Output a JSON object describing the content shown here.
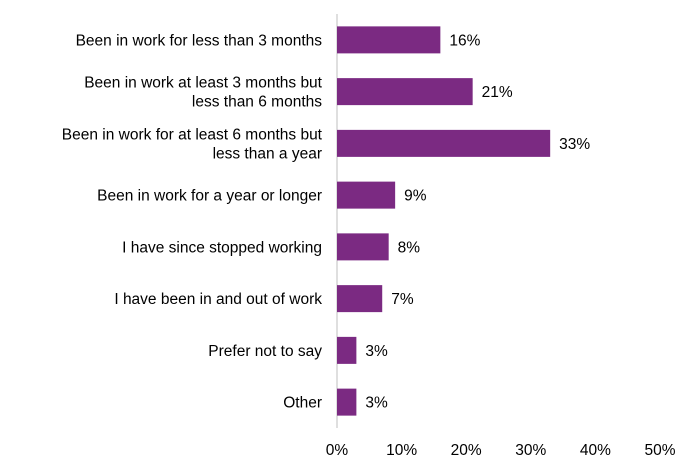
{
  "chart_data": {
    "type": "bar",
    "orientation": "horizontal",
    "categories": [
      [
        "Been in work for less than 3 months"
      ],
      [
        "Been in work at least 3 months but",
        "less than 6 months"
      ],
      [
        "Been in work for at least 6 months but",
        "less than a year"
      ],
      [
        "Been in work for a year or longer"
      ],
      [
        "I have since stopped working"
      ],
      [
        "I have been in and out of work"
      ],
      [
        "Prefer not to say"
      ],
      [
        "Other"
      ]
    ],
    "values": [
      16,
      21,
      33,
      9,
      8,
      7,
      3,
      3
    ],
    "value_labels": [
      "16%",
      "21%",
      "33%",
      "9%",
      "8%",
      "7%",
      "3%",
      "3%"
    ],
    "xlim": [
      0,
      50
    ],
    "xticks": [
      0,
      10,
      20,
      30,
      40,
      50
    ],
    "xtick_labels": [
      "0%",
      "10%",
      "20%",
      "30%",
      "40%",
      "50%"
    ],
    "bar_color": "#7B2A82",
    "grid": false,
    "legend": "none",
    "title": "",
    "xlabel": "",
    "ylabel": ""
  }
}
